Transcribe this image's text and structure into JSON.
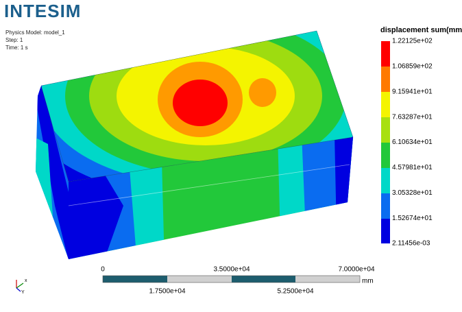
{
  "header": {
    "logo": "INTESIM",
    "info": [
      "Physics Model: model_1",
      "Step: 1",
      "Time: 1 s"
    ]
  },
  "legend": {
    "title": "displacement sum(mm)",
    "labels": [
      "1.22125e+02",
      "1.06859e+02",
      "9.15941e+01",
      "7.63287e+01",
      "6.10634e+01",
      "4.57981e+01",
      "3.05328e+01",
      "1.52674e+01",
      "2.11456e-03"
    ]
  },
  "scale_bar": {
    "top_labels": [
      "0",
      "3.5000e+04",
      "7.0000e+04"
    ],
    "bottom_labels": [
      "1.7500e+04",
      "5.2500e+04"
    ],
    "unit": "mm"
  },
  "triad": {
    "x": "x",
    "y": "Y"
  }
}
